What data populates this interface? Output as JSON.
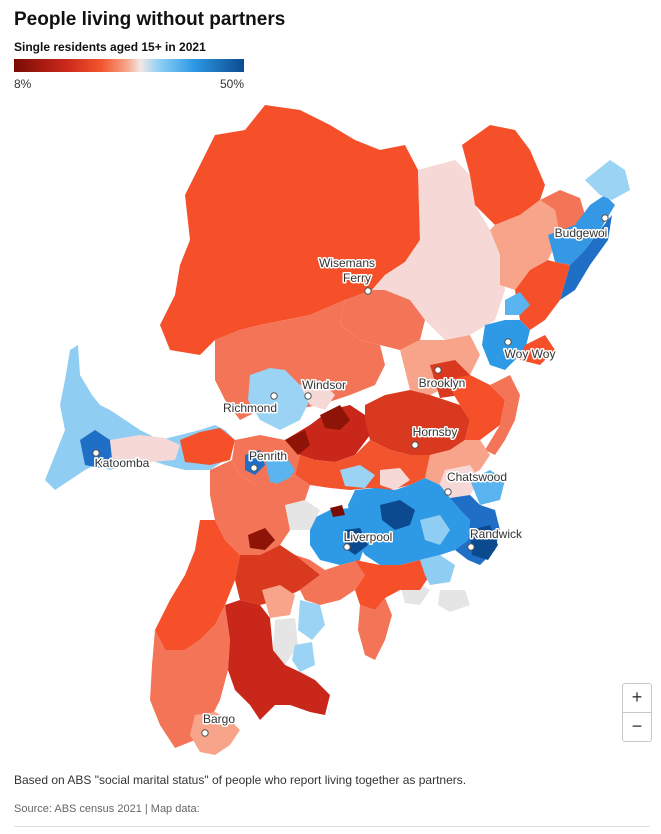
{
  "title": "People living without partners",
  "subtitle": "Single residents aged 15+ in 2021",
  "legend": {
    "min_label": "8%",
    "max_label": "50%"
  },
  "places": [
    {
      "name": "Wisemans",
      "id": "wisemans"
    },
    {
      "name": "Ferry",
      "id": "ferry"
    },
    {
      "name": "Budgewoi",
      "id": "budgewoi"
    },
    {
      "name": "Woy Woy",
      "id": "woy-woy"
    },
    {
      "name": "Windsor",
      "id": "windsor"
    },
    {
      "name": "Richmond",
      "id": "richmond"
    },
    {
      "name": "Brooklyn",
      "id": "brooklyn"
    },
    {
      "name": "Hornsby",
      "id": "hornsby"
    },
    {
      "name": "Katoomba",
      "id": "katoomba"
    },
    {
      "name": "Penrith",
      "id": "penrith"
    },
    {
      "name": "Chatswood",
      "id": "chatswood"
    },
    {
      "name": "Liverpool",
      "id": "liverpool"
    },
    {
      "name": "Randwick",
      "id": "randwick"
    },
    {
      "name": "Bargo",
      "id": "bargo"
    }
  ],
  "zoom": {
    "in_label": "+",
    "out_label": "−"
  },
  "note": "Based on ABS \"social marital status\" of people who report living together as partners.",
  "source": "Source: ABS census 2021 | Map data:",
  "colors": {
    "low": "#7a0c04",
    "mid": "#f3e6e6",
    "high": "#0b4a8f"
  }
}
